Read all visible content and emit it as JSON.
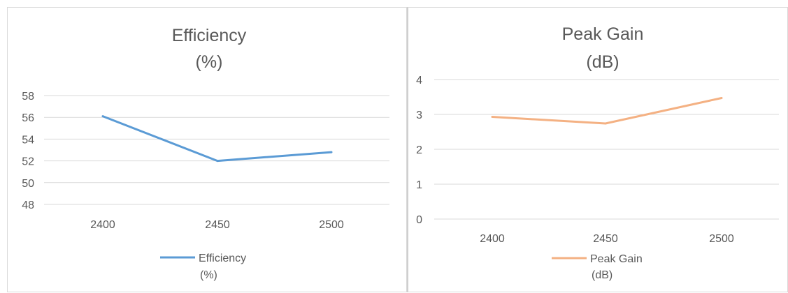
{
  "chart_data": [
    {
      "type": "line",
      "title_lines": [
        "Efficiency",
        "(%)"
      ],
      "categories": [
        "2400",
        "2450",
        "2500"
      ],
      "y_ticks": [
        "48",
        "50",
        "52",
        "54",
        "56",
        "58"
      ],
      "ylim": [
        48,
        58
      ],
      "grid": true,
      "legend_position": "bottom",
      "legend_lines": [
        "Efficiency",
        "(%)"
      ],
      "series": [
        {
          "values": [
            56.1,
            52.0,
            52.8
          ],
          "color": "#5b9bd5"
        }
      ]
    },
    {
      "type": "line",
      "title_lines": [
        "Peak Gain",
        "(dB)"
      ],
      "categories": [
        "2400",
        "2450",
        "2500"
      ],
      "y_ticks": [
        "0",
        "1",
        "2",
        "3",
        "4"
      ],
      "ylim": [
        0,
        4
      ],
      "grid": true,
      "legend_position": "bottom",
      "legend_lines": [
        "Peak Gain",
        "(dB)"
      ],
      "series": [
        {
          "values": [
            2.93,
            2.74,
            3.47
          ],
          "color": "#f4b183"
        }
      ]
    }
  ]
}
